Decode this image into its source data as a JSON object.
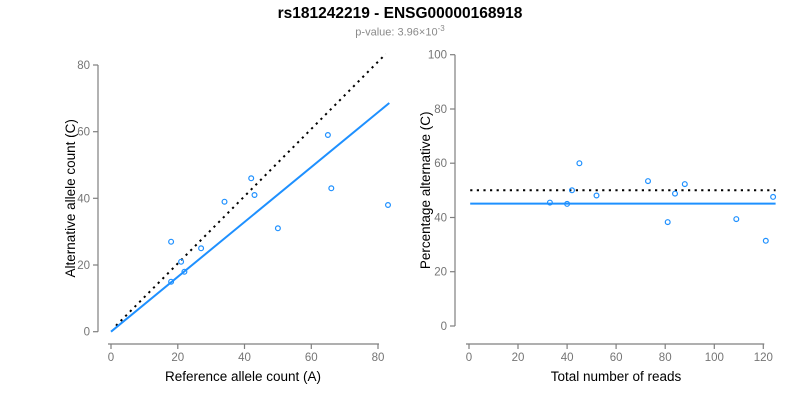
{
  "header": {
    "title": "rs181242219 - ENSG00000168918",
    "pvalue_label": "p-value: 3.96×10",
    "pvalue_exponent": "-3"
  },
  "colors": {
    "accent_blue": "#1E90FF",
    "dotted_line_black": "#000000",
    "axis_gray": "#7f7f7f",
    "tick_label_gray": "#757575",
    "axis_title_black": "#000000",
    "subtitle_gray": "#8a8a8a"
  },
  "chart_data": [
    {
      "id": "allele-counts-scatter",
      "type": "scatter",
      "title": "",
      "xlabel": "Reference allele count (A)",
      "ylabel": "Alternative allele count (C)",
      "xlim": [
        0,
        83
      ],
      "ylim": [
        0,
        84
      ],
      "xticks": [
        0,
        20,
        40,
        60,
        80
      ],
      "yticks": [
        0,
        20,
        40,
        60,
        80
      ],
      "grid": false,
      "legend": false,
      "point_color": "#1E90FF",
      "points": [
        [
          18,
          15
        ],
        [
          18,
          27
        ],
        [
          21,
          21
        ],
        [
          22,
          18
        ],
        [
          27,
          25
        ],
        [
          34,
          39
        ],
        [
          42,
          46
        ],
        [
          43,
          41
        ],
        [
          50,
          31
        ],
        [
          65,
          59
        ],
        [
          66,
          43
        ],
        [
          83,
          38
        ]
      ],
      "lines": [
        {
          "name": "expected-identity-line",
          "style": "dotted",
          "color": "#000000",
          "x1": 1.5,
          "y1": 1.8,
          "x2": 82.3,
          "y2": 83.3
        },
        {
          "name": "fitted-regression-line",
          "style": "solid",
          "color": "#1E90FF",
          "x1": 0,
          "y1": 0,
          "x2": 83.4,
          "y2": 68.6
        }
      ]
    },
    {
      "id": "percentage-reads-scatter",
      "type": "scatter",
      "title": "",
      "xlabel": "Total number of reads",
      "ylabel": "Percentage alternative (C)",
      "xlim": [
        0,
        125
      ],
      "ylim": [
        0,
        100
      ],
      "xticks": [
        0,
        20,
        40,
        60,
        80,
        100,
        120
      ],
      "yticks": [
        0,
        20,
        40,
        60,
        80,
        100
      ],
      "grid": false,
      "legend": false,
      "point_color": "#1E90FF",
      "points": [
        [
          33,
          45.5
        ],
        [
          40,
          45
        ],
        [
          42,
          50
        ],
        [
          45,
          60
        ],
        [
          52,
          48.1
        ],
        [
          73,
          53.4
        ],
        [
          81,
          38.3
        ],
        [
          84,
          48.8
        ],
        [
          88,
          52.3
        ],
        [
          109,
          39.4
        ],
        [
          121,
          31.4
        ],
        [
          124,
          47.6
        ]
      ],
      "lines": [
        {
          "name": "expected-50pct-line",
          "style": "dotted",
          "color": "#000000",
          "x1": 0.5,
          "y1": 50,
          "x2": 125,
          "y2": 50
        },
        {
          "name": "mean-percentage-line",
          "style": "solid",
          "color": "#1E90FF",
          "x1": 0.5,
          "y1": 45.1,
          "x2": 125,
          "y2": 45.1
        }
      ]
    }
  ]
}
